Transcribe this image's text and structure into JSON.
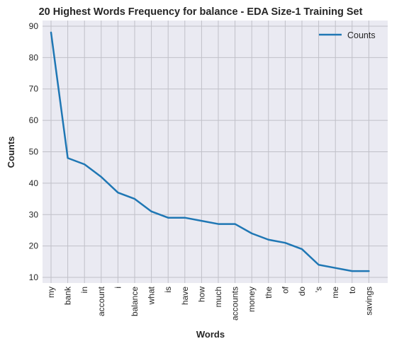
{
  "chart_data": {
    "type": "line",
    "title": "20 Highest Words Frequency for balance - EDA Size-1 Training Set",
    "xlabel": "Words",
    "ylabel": "Counts",
    "categories": [
      "my",
      "bank",
      "in",
      "account",
      "i",
      "balance",
      "what",
      "is",
      "have",
      "how",
      "much",
      "accounts",
      "money",
      "the",
      "of",
      "do",
      "'s",
      "me",
      "to",
      "savings"
    ],
    "series": [
      {
        "name": "Counts",
        "values": [
          88,
          48,
          46,
          42,
          37,
          35,
          31,
          29,
          29,
          28,
          27,
          27,
          24,
          22,
          21,
          19,
          14,
          13,
          12,
          12
        ]
      }
    ],
    "yticks": [
      10,
      20,
      30,
      40,
      50,
      60,
      70,
      80,
      90
    ],
    "ylim": [
      8.2,
      91.8
    ],
    "legend_position": "top-right",
    "grid": true,
    "colors": {
      "line": "#1f77b4",
      "plot_background": "#eaeaf2",
      "grid": "#c0c0c8",
      "text": "#262626"
    }
  }
}
